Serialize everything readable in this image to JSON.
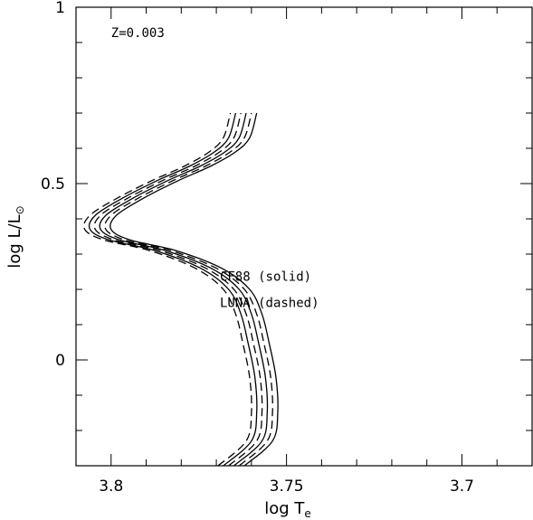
{
  "chart_data": {
    "type": "line",
    "xlabel": "log T",
    "xlabel_sub": "e",
    "ylabel": "log L/L",
    "ylabel_sub": "⊙",
    "xlim": [
      3.81,
      3.68
    ],
    "ylim": [
      -0.3,
      1.0
    ],
    "x_ticks": [
      3.8,
      3.75,
      3.7
    ],
    "x_tick_labels": [
      "3.8",
      "3.75",
      "3.7"
    ],
    "y_ticks": [
      0,
      0.5,
      1
    ],
    "y_tick_labels": [
      "0",
      "0.5",
      "1"
    ],
    "x_minor_step": 0.01,
    "y_minor_step": 0.1,
    "grid": false,
    "annotations": [
      {
        "text": "Z=0.003",
        "x": 3.8,
        "y": 0.915
      },
      {
        "text": "CF88 (solid)",
        "x": 3.769,
        "y": 0.225
      },
      {
        "text": "LUNA (dashed)",
        "x": 3.769,
        "y": 0.15
      }
    ],
    "line_styles": {
      "solid": "CF88",
      "dashed": "LUNA"
    },
    "series": [
      {
        "style": "dashed",
        "x": [
          3.7695,
          3.7615,
          3.76,
          3.7605,
          3.7625,
          3.7645,
          3.768,
          3.776,
          3.789,
          3.802,
          3.8075,
          3.806,
          3.798,
          3.788,
          3.779,
          3.772,
          3.768,
          3.766
        ],
        "y": [
          -0.3,
          -0.23,
          -0.15,
          -0.05,
          0.05,
          0.13,
          0.2,
          0.26,
          0.31,
          0.34,
          0.37,
          0.41,
          0.46,
          0.51,
          0.55,
          0.59,
          0.63,
          0.7
        ]
      },
      {
        "style": "solid",
        "x": [
          3.768,
          3.76,
          3.7585,
          3.759,
          3.761,
          3.763,
          3.7665,
          3.7745,
          3.7875,
          3.8005,
          3.806,
          3.8045,
          3.7965,
          3.7865,
          3.7775,
          3.7705,
          3.7665,
          3.7645
        ],
        "y": [
          -0.3,
          -0.23,
          -0.15,
          -0.05,
          0.05,
          0.13,
          0.2,
          0.26,
          0.31,
          0.34,
          0.37,
          0.41,
          0.46,
          0.51,
          0.55,
          0.59,
          0.63,
          0.7
        ]
      },
      {
        "style": "dashed",
        "x": [
          3.7665,
          3.7585,
          3.757,
          3.7575,
          3.7595,
          3.7615,
          3.765,
          3.773,
          3.786,
          3.799,
          3.8045,
          3.803,
          3.795,
          3.785,
          3.776,
          3.769,
          3.765,
          3.763
        ],
        "y": [
          -0.3,
          -0.23,
          -0.15,
          -0.05,
          0.05,
          0.13,
          0.2,
          0.26,
          0.31,
          0.34,
          0.37,
          0.41,
          0.46,
          0.51,
          0.55,
          0.59,
          0.63,
          0.7
        ]
      },
      {
        "style": "solid",
        "x": [
          3.765,
          3.757,
          3.7555,
          3.756,
          3.758,
          3.76,
          3.7635,
          3.7715,
          3.7845,
          3.7975,
          3.803,
          3.8015,
          3.7935,
          3.7835,
          3.7745,
          3.7675,
          3.7635,
          3.7615
        ],
        "y": [
          -0.3,
          -0.23,
          -0.15,
          -0.05,
          0.05,
          0.13,
          0.2,
          0.26,
          0.31,
          0.34,
          0.37,
          0.41,
          0.46,
          0.51,
          0.55,
          0.59,
          0.63,
          0.7
        ]
      },
      {
        "style": "dashed",
        "x": [
          3.7635,
          3.7555,
          3.754,
          3.7545,
          3.7565,
          3.7585,
          3.762,
          3.77,
          3.783,
          3.796,
          3.8015,
          3.8,
          3.792,
          3.782,
          3.773,
          3.766,
          3.762,
          3.76
        ],
        "y": [
          -0.3,
          -0.23,
          -0.15,
          -0.05,
          0.05,
          0.13,
          0.2,
          0.26,
          0.31,
          0.34,
          0.37,
          0.41,
          0.46,
          0.51,
          0.55,
          0.59,
          0.63,
          0.7
        ]
      },
      {
        "style": "solid",
        "x": [
          3.762,
          3.754,
          3.7525,
          3.753,
          3.755,
          3.757,
          3.7605,
          3.7685,
          3.7815,
          3.7945,
          3.8,
          3.7985,
          3.7905,
          3.7805,
          3.7715,
          3.7645,
          3.7605,
          3.7585
        ],
        "y": [
          -0.3,
          -0.23,
          -0.15,
          -0.05,
          0.05,
          0.13,
          0.2,
          0.26,
          0.31,
          0.34,
          0.37,
          0.41,
          0.46,
          0.51,
          0.55,
          0.59,
          0.63,
          0.7
        ]
      }
    ]
  }
}
